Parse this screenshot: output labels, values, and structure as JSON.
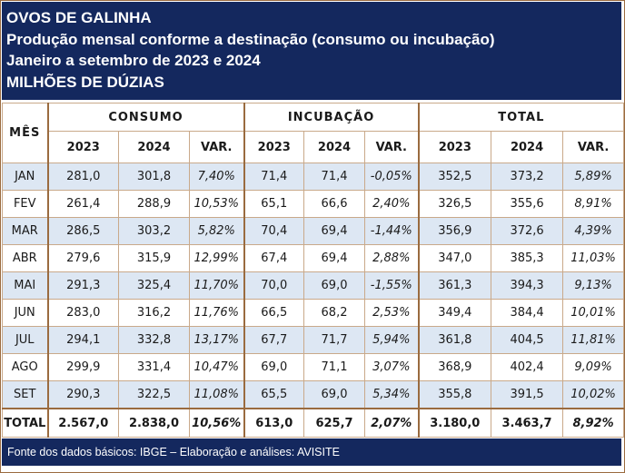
{
  "header": {
    "title": "OVOS DE GALINHA",
    "subtitle": "Produção mensal conforme a destinação (consumo ou incubação)",
    "period": "Janeiro a setembro de 2023 e 2024",
    "unit": "MILHÕES DE DÚZIAS"
  },
  "table": {
    "month_header": "MÊS",
    "groups": [
      "CONSUMO",
      "INCUBAÇÃO",
      "TOTAL"
    ],
    "subheaders": [
      "2023",
      "2024",
      "VAR."
    ],
    "rows": [
      {
        "month": "JAN",
        "c23": "281,0",
        "c24": "301,8",
        "cv": "7,40%",
        "i23": "71,4",
        "i24": "71,4",
        "iv": "-0,05%",
        "t23": "352,5",
        "t24": "373,2",
        "tv": "5,89%"
      },
      {
        "month": "FEV",
        "c23": "261,4",
        "c24": "288,9",
        "cv": "10,53%",
        "i23": "65,1",
        "i24": "66,6",
        "iv": "2,40%",
        "t23": "326,5",
        "t24": "355,6",
        "tv": "8,91%"
      },
      {
        "month": "MAR",
        "c23": "286,5",
        "c24": "303,2",
        "cv": "5,82%",
        "i23": "70,4",
        "i24": "69,4",
        "iv": "-1,44%",
        "t23": "356,9",
        "t24": "372,6",
        "tv": "4,39%"
      },
      {
        "month": "ABR",
        "c23": "279,6",
        "c24": "315,9",
        "cv": "12,99%",
        "i23": "67,4",
        "i24": "69,4",
        "iv": "2,88%",
        "t23": "347,0",
        "t24": "385,3",
        "tv": "11,03%"
      },
      {
        "month": "MAI",
        "c23": "291,3",
        "c24": "325,4",
        "cv": "11,70%",
        "i23": "70,0",
        "i24": "69,0",
        "iv": "-1,55%",
        "t23": "361,3",
        "t24": "394,3",
        "tv": "9,13%"
      },
      {
        "month": "JUN",
        "c23": "283,0",
        "c24": "316,2",
        "cv": "11,76%",
        "i23": "66,5",
        "i24": "68,2",
        "iv": "2,53%",
        "t23": "349,4",
        "t24": "384,4",
        "tv": "10,01%"
      },
      {
        "month": "JUL",
        "c23": "294,1",
        "c24": "332,8",
        "cv": "13,17%",
        "i23": "67,7",
        "i24": "71,7",
        "iv": "5,94%",
        "t23": "361,8",
        "t24": "404,5",
        "tv": "11,81%"
      },
      {
        "month": "AGO",
        "c23": "299,9",
        "c24": "331,4",
        "cv": "10,47%",
        "i23": "69,0",
        "i24": "71,1",
        "iv": "3,07%",
        "t23": "368,9",
        "t24": "402,4",
        "tv": "9,09%"
      },
      {
        "month": "SET",
        "c23": "290,3",
        "c24": "322,5",
        "cv": "11,08%",
        "i23": "65,5",
        "i24": "69,0",
        "iv": "5,34%",
        "t23": "355,8",
        "t24": "391,5",
        "tv": "10,02%"
      }
    ],
    "total": {
      "month": "TOTAL",
      "c23": "2.567,0",
      "c24": "2.838,0",
      "cv": "10,56%",
      "i23": "613,0",
      "i24": "625,7",
      "iv": "2,07%",
      "t23": "3.180,0",
      "t24": "3.463,7",
      "tv": "8,92%"
    }
  },
  "footer": "Fonte dos dados básicos: IBGE – Elaboração e análises: AVISITE",
  "colors": {
    "header_bg": "#14285e",
    "negative": "#e00000",
    "row_alt": "#dde7f3"
  }
}
